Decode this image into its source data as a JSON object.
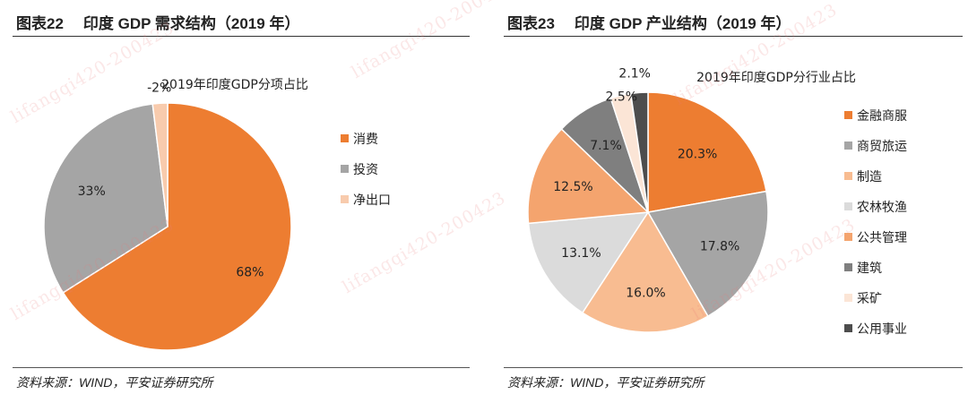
{
  "watermark": "lifangqi420-200423",
  "left": {
    "figure_number": "图表22",
    "figure_title": "印度 GDP 需求结构（2019 年）",
    "source": "资料来源：WIND，平安证券研究所",
    "chart_data": {
      "type": "pie",
      "title": "2019年印度GDP分项占比",
      "categories": [
        "消费",
        "投资",
        "净出口"
      ],
      "values": [
        68,
        33,
        -2
      ],
      "value_labels": [
        "68%",
        "33%",
        "-2%"
      ],
      "colors": [
        "#ED7D31",
        "#A5A5A5",
        "#F8CBAD"
      ],
      "legend": "right"
    }
  },
  "right": {
    "figure_number": "图表23",
    "figure_title": "印度 GDP 产业结构（2019 年）",
    "source": "资料来源：WIND，平安证券研究所",
    "chart_data": {
      "type": "pie",
      "title": "2019年印度GDP分行业占比",
      "categories": [
        "金融商服",
        "商贸旅运",
        "制造",
        "农林牧渔",
        "公共管理",
        "建筑",
        "采矿",
        "公用事业"
      ],
      "values": [
        20.3,
        17.8,
        16.0,
        13.1,
        12.5,
        7.1,
        2.5,
        2.1
      ],
      "value_labels": [
        "20.3%",
        "17.8%",
        "16.0%",
        "13.1%",
        "12.5%",
        "7.1%",
        "2.5%",
        "2.1%"
      ],
      "colors": [
        "#ED7D31",
        "#A5A5A5",
        "#F8BC91",
        "#DBDBDB",
        "#F4A46E",
        "#7F7F7F",
        "#FBE5D6",
        "#4D4D4D"
      ],
      "legend": "right"
    }
  }
}
